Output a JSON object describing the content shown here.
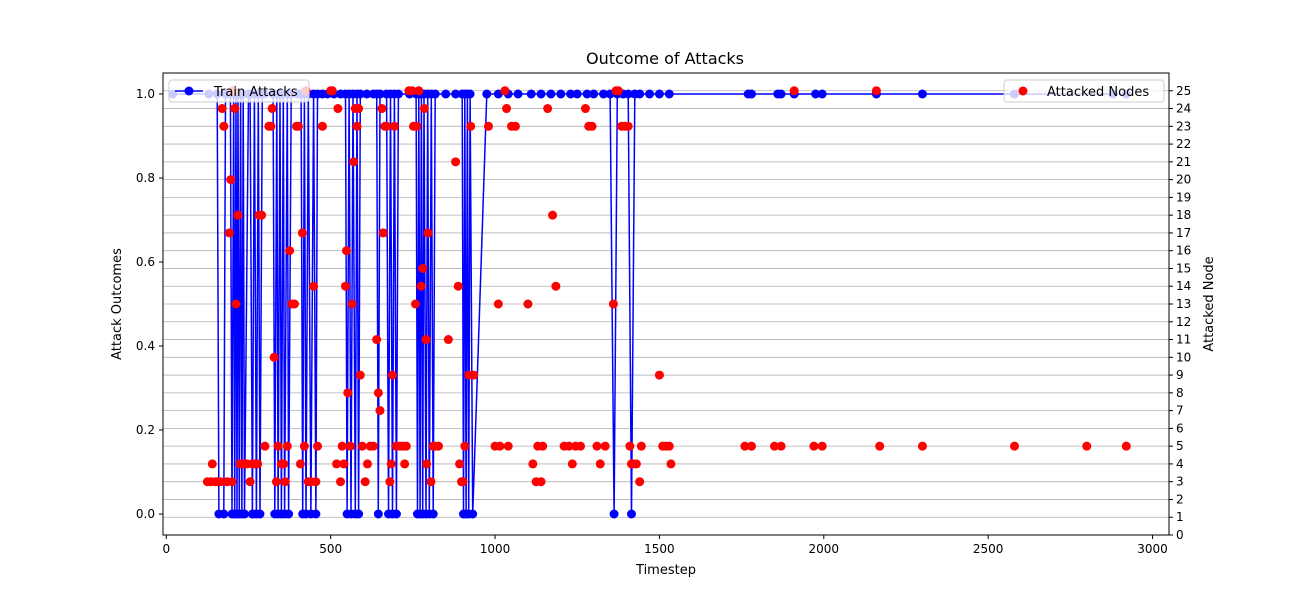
{
  "chart_data": {
    "type": "scatter",
    "title": "Outcome of Attacks",
    "xlabel": "Timestep",
    "ylabel": "Attack Outcomes",
    "y2label": "Attacked Node",
    "xlim": [
      -10,
      3050
    ],
    "ylim": [
      -0.05,
      1.05
    ],
    "y2lim": [
      0,
      26
    ],
    "xticks": [
      0,
      500,
      1000,
      1500,
      2000,
      2500,
      3000
    ],
    "yticks": [
      0.0,
      0.2,
      0.4,
      0.6,
      0.8,
      1.0
    ],
    "y2ticks": [
      0,
      1,
      2,
      3,
      4,
      5,
      6,
      7,
      8,
      9,
      10,
      11,
      12,
      13,
      14,
      15,
      16,
      17,
      18,
      19,
      20,
      21,
      22,
      23,
      24,
      25
    ],
    "grid": "right-axis horizontal",
    "legends": [
      {
        "label": "Train Attacks",
        "position": "upper-left",
        "color": "#0000ff"
      },
      {
        "label": "Attacked Nodes",
        "position": "upper-right",
        "color": "#ff0000"
      }
    ],
    "series": [
      {
        "name": "Train Attacks",
        "axis": "left",
        "style": "line+markers",
        "color": "#0000ff",
        "points": [
          [
            20,
            1
          ],
          [
            130,
            1
          ],
          [
            155,
            1
          ],
          [
            160,
            0
          ],
          [
            175,
            0
          ],
          [
            180,
            1
          ],
          [
            195,
            1
          ],
          [
            200,
            0
          ],
          [
            205,
            1
          ],
          [
            208,
            0
          ],
          [
            212,
            1
          ],
          [
            215,
            0
          ],
          [
            218,
            1
          ],
          [
            222,
            0
          ],
          [
            226,
            1
          ],
          [
            230,
            0
          ],
          [
            234,
            1
          ],
          [
            238,
            0
          ],
          [
            250,
            1
          ],
          [
            255,
            1
          ],
          [
            262,
            0
          ],
          [
            268,
            1
          ],
          [
            274,
            0
          ],
          [
            280,
            1
          ],
          [
            285,
            0
          ],
          [
            292,
            1
          ],
          [
            300,
            1
          ],
          [
            325,
            1
          ],
          [
            330,
            0
          ],
          [
            336,
            1
          ],
          [
            340,
            0
          ],
          [
            346,
            1
          ],
          [
            350,
            0
          ],
          [
            356,
            1
          ],
          [
            360,
            0
          ],
          [
            368,
            1
          ],
          [
            372,
            0
          ],
          [
            380,
            1
          ],
          [
            400,
            1
          ],
          [
            410,
            1
          ],
          [
            415,
            0
          ],
          [
            420,
            1
          ],
          [
            425,
            0
          ],
          [
            432,
            1
          ],
          [
            440,
            0
          ],
          [
            448,
            1
          ],
          [
            455,
            0
          ],
          [
            460,
            1
          ],
          [
            475,
            1
          ],
          [
            490,
            1
          ],
          [
            510,
            1
          ],
          [
            530,
            1
          ],
          [
            545,
            1
          ],
          [
            550,
            0
          ],
          [
            556,
            1
          ],
          [
            562,
            0
          ],
          [
            568,
            1
          ],
          [
            575,
            0
          ],
          [
            580,
            1
          ],
          [
            585,
            0
          ],
          [
            590,
            1
          ],
          [
            610,
            1
          ],
          [
            630,
            1
          ],
          [
            640,
            1
          ],
          [
            645,
            0
          ],
          [
            650,
            1
          ],
          [
            670,
            1
          ],
          [
            676,
            0
          ],
          [
            682,
            1
          ],
          [
            688,
            0
          ],
          [
            694,
            1
          ],
          [
            700,
            0
          ],
          [
            706,
            1
          ],
          [
            740,
            1
          ],
          [
            760,
            1
          ],
          [
            764,
            0
          ],
          [
            768,
            1
          ],
          [
            772,
            0
          ],
          [
            776,
            1
          ],
          [
            780,
            0
          ],
          [
            784,
            1
          ],
          [
            790,
            0
          ],
          [
            795,
            1
          ],
          [
            800,
            0
          ],
          [
            806,
            1
          ],
          [
            812,
            0
          ],
          [
            818,
            1
          ],
          [
            850,
            1
          ],
          [
            880,
            1
          ],
          [
            900,
            1
          ],
          [
            904,
            0
          ],
          [
            908,
            1
          ],
          [
            912,
            0
          ],
          [
            916,
            1
          ],
          [
            920,
            0
          ],
          [
            924,
            1
          ],
          [
            932,
            0
          ],
          [
            975,
            1
          ],
          [
            1010,
            1
          ],
          [
            1040,
            1
          ],
          [
            1070,
            1
          ],
          [
            1110,
            1
          ],
          [
            1140,
            1
          ],
          [
            1170,
            1
          ],
          [
            1200,
            1
          ],
          [
            1230,
            1
          ],
          [
            1250,
            1
          ],
          [
            1280,
            1
          ],
          [
            1300,
            1
          ],
          [
            1330,
            1
          ],
          [
            1350,
            1
          ],
          [
            1362,
            0
          ],
          [
            1372,
            1
          ],
          [
            1390,
            1
          ],
          [
            1405,
            1
          ],
          [
            1415,
            0
          ],
          [
            1425,
            1
          ],
          [
            1440,
            1
          ],
          [
            1470,
            1
          ],
          [
            1500,
            1
          ],
          [
            1530,
            1
          ],
          [
            1770,
            1
          ],
          [
            1780,
            1
          ],
          [
            1860,
            1
          ],
          [
            1870,
            1
          ],
          [
            1910,
            1
          ],
          [
            1975,
            1
          ],
          [
            1995,
            1
          ],
          [
            2160,
            1
          ],
          [
            2300,
            1
          ],
          [
            2580,
            1
          ],
          [
            2880,
            1
          ],
          [
            2920,
            1
          ]
        ]
      },
      {
        "name": "Attacked Nodes",
        "axis": "right",
        "style": "markers",
        "color": "#ff0000",
        "points": [
          [
            125,
            3
          ],
          [
            135,
            3
          ],
          [
            140,
            4
          ],
          [
            148,
            3
          ],
          [
            155,
            3
          ],
          [
            165,
            3
          ],
          [
            170,
            24
          ],
          [
            175,
            23
          ],
          [
            185,
            3
          ],
          [
            192,
            17
          ],
          [
            196,
            20
          ],
          [
            200,
            3
          ],
          [
            204,
            25
          ],
          [
            208,
            24
          ],
          [
            212,
            13
          ],
          [
            218,
            18
          ],
          [
            224,
            4
          ],
          [
            230,
            4
          ],
          [
            238,
            4
          ],
          [
            246,
            4
          ],
          [
            255,
            3
          ],
          [
            262,
            4
          ],
          [
            270,
            4
          ],
          [
            278,
            4
          ],
          [
            282,
            18
          ],
          [
            290,
            18
          ],
          [
            300,
            5
          ],
          [
            312,
            23
          ],
          [
            318,
            23
          ],
          [
            322,
            24
          ],
          [
            328,
            10
          ],
          [
            335,
            3
          ],
          [
            340,
            5
          ],
          [
            350,
            4
          ],
          [
            357,
            4
          ],
          [
            362,
            3
          ],
          [
            368,
            5
          ],
          [
            375,
            16
          ],
          [
            382,
            13
          ],
          [
            390,
            13
          ],
          [
            396,
            23
          ],
          [
            402,
            23
          ],
          [
            408,
            4
          ],
          [
            414,
            17
          ],
          [
            420,
            5
          ],
          [
            425,
            25
          ],
          [
            432,
            3
          ],
          [
            440,
            3
          ],
          [
            448,
            14
          ],
          [
            455,
            3
          ],
          [
            460,
            5
          ],
          [
            475,
            23
          ],
          [
            500,
            25
          ],
          [
            505,
            25
          ],
          [
            518,
            4
          ],
          [
            522,
            24
          ],
          [
            530,
            3
          ],
          [
            535,
            5
          ],
          [
            540,
            4
          ],
          [
            545,
            14
          ],
          [
            548,
            16
          ],
          [
            552,
            8
          ],
          [
            560,
            5
          ],
          [
            565,
            13
          ],
          [
            570,
            21
          ],
          [
            575,
            24
          ],
          [
            580,
            23
          ],
          [
            585,
            24
          ],
          [
            590,
            9
          ],
          [
            596,
            5
          ],
          [
            605,
            3
          ],
          [
            612,
            4
          ],
          [
            620,
            5
          ],
          [
            630,
            5
          ],
          [
            640,
            11
          ],
          [
            645,
            8
          ],
          [
            650,
            7
          ],
          [
            656,
            24
          ],
          [
            660,
            17
          ],
          [
            665,
            23
          ],
          [
            670,
            23
          ],
          [
            680,
            3
          ],
          [
            684,
            4
          ],
          [
            688,
            9
          ],
          [
            694,
            23
          ],
          [
            700,
            5
          ],
          [
            710,
            5
          ],
          [
            720,
            5
          ],
          [
            725,
            4
          ],
          [
            730,
            5
          ],
          [
            738,
            25
          ],
          [
            748,
            25
          ],
          [
            752,
            23
          ],
          [
            758,
            13
          ],
          [
            762,
            23
          ],
          [
            768,
            25
          ],
          [
            775,
            14
          ],
          [
            780,
            15
          ],
          [
            785,
            24
          ],
          [
            790,
            11
          ],
          [
            792,
            4
          ],
          [
            796,
            17
          ],
          [
            805,
            3
          ],
          [
            812,
            5
          ],
          [
            818,
            5
          ],
          [
            828,
            5
          ],
          [
            858,
            11
          ],
          [
            880,
            21
          ],
          [
            888,
            14
          ],
          [
            892,
            4
          ],
          [
            898,
            3
          ],
          [
            902,
            3
          ],
          [
            908,
            5
          ],
          [
            920,
            9
          ],
          [
            926,
            23
          ],
          [
            935,
            9
          ],
          [
            980,
            23
          ],
          [
            1000,
            5
          ],
          [
            1010,
            13
          ],
          [
            1015,
            5
          ],
          [
            1030,
            25
          ],
          [
            1035,
            24
          ],
          [
            1040,
            5
          ],
          [
            1050,
            23
          ],
          [
            1062,
            23
          ],
          [
            1100,
            13
          ],
          [
            1115,
            4
          ],
          [
            1125,
            3
          ],
          [
            1130,
            5
          ],
          [
            1140,
            3
          ],
          [
            1145,
            5
          ],
          [
            1160,
            24
          ],
          [
            1175,
            18
          ],
          [
            1185,
            14
          ],
          [
            1210,
            5
          ],
          [
            1225,
            5
          ],
          [
            1235,
            4
          ],
          [
            1245,
            5
          ],
          [
            1260,
            5
          ],
          [
            1275,
            24
          ],
          [
            1285,
            23
          ],
          [
            1295,
            23
          ],
          [
            1310,
            5
          ],
          [
            1320,
            4
          ],
          [
            1335,
            5
          ],
          [
            1360,
            13
          ],
          [
            1368,
            25
          ],
          [
            1375,
            25
          ],
          [
            1385,
            23
          ],
          [
            1395,
            23
          ],
          [
            1405,
            23
          ],
          [
            1410,
            5
          ],
          [
            1415,
            4
          ],
          [
            1420,
            4
          ],
          [
            1430,
            4
          ],
          [
            1440,
            3
          ],
          [
            1445,
            5
          ],
          [
            1500,
            9
          ],
          [
            1510,
            5
          ],
          [
            1520,
            5
          ],
          [
            1530,
            5
          ],
          [
            1535,
            4
          ],
          [
            1760,
            5
          ],
          [
            1780,
            5
          ],
          [
            1850,
            5
          ],
          [
            1870,
            5
          ],
          [
            1910,
            25
          ],
          [
            1970,
            5
          ],
          [
            1995,
            5
          ],
          [
            2160,
            25
          ],
          [
            2170,
            5
          ],
          [
            2300,
            5
          ],
          [
            2580,
            5
          ],
          [
            2800,
            5
          ],
          [
            2920,
            5
          ]
        ]
      }
    ]
  }
}
